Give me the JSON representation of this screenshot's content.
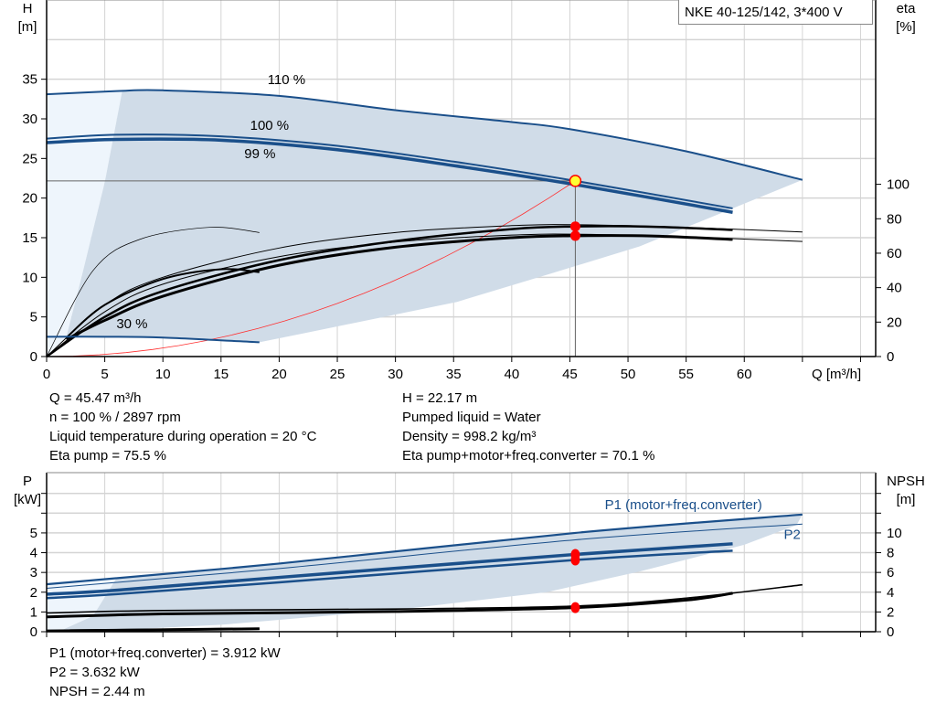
{
  "title_box": "NKE 40-125/142, 3*400 V",
  "colors": {
    "curve_blue": "#1a4f8a",
    "region": "#d0dce8",
    "region_light": "#eef5fc",
    "system_curve": "#ff3030",
    "duty_point": "#ffff33",
    "marker": "#ff0000"
  },
  "info_top": {
    "left": [
      "Q = 45.47 m³/h",
      "n = 100 % / 2897 rpm",
      "Liquid temperature during operation = 20 °C",
      "Eta pump = 75.5 %"
    ],
    "right": [
      "H = 22.17 m",
      "Pumped liquid = Water",
      "Density = 998.2 kg/m³",
      "Eta pump+motor+freq.converter = 70.1 %"
    ]
  },
  "info_bottom": [
    "P1 (motor+freq.converter) = 3.912 kW",
    "P2 = 3.632 kW",
    "NPSH = 2.44 m"
  ],
  "chart_data": [
    {
      "type": "line",
      "xlabel": "Q [m³/h]",
      "ylabel": "H",
      "ylabel_unit": "[m]",
      "y2label": "eta",
      "y2label_unit": "[%]",
      "xlim": [
        0,
        71.3
      ],
      "ylim": [
        0,
        45
      ],
      "y2lim": [
        0,
        207
      ],
      "xticks": [
        0,
        5,
        10,
        15,
        20,
        25,
        30,
        35,
        40,
        45,
        50,
        55,
        60
      ],
      "xticks_unlabeled": [
        65,
        70
      ],
      "yticks": [
        0,
        5,
        10,
        15,
        20,
        25,
        30,
        35
      ],
      "y2ticks": [
        0,
        20,
        40,
        60,
        80,
        100
      ],
      "grid": true,
      "curve_labels": [
        {
          "text": "110 %",
          "x": 19,
          "y": 34.4
        },
        {
          "text": "100 %",
          "x": 17.5,
          "y": 28.4
        },
        {
          "text": "99 %",
          "x": 17,
          "y": 27.6
        },
        {
          "text": "30 %",
          "x": 6,
          "y": 3.6
        }
      ],
      "head_series": [
        {
          "speed": "110 %",
          "points": [
            [
              0,
              33.1
            ],
            [
              6,
              33.5
            ],
            [
              10,
              33.6
            ],
            [
              20,
              32.9
            ],
            [
              30,
              31.1
            ],
            [
              40,
              29.6
            ],
            [
              45,
              28.7
            ],
            [
              55,
              25.9
            ],
            [
              65,
              22.3
            ]
          ]
        },
        {
          "speed": "100 %",
          "points": [
            [
              0,
              27.5
            ],
            [
              6,
              28
            ],
            [
              15,
              27.8
            ],
            [
              25,
              26.6
            ],
            [
              35,
              24.6
            ],
            [
              45.47,
              22.17
            ],
            [
              59,
              18.7
            ]
          ]
        },
        {
          "speed": "99 %",
          "points": [
            [
              0,
              27
            ],
            [
              6,
              27.4
            ],
            [
              15,
              27.3
            ],
            [
              25,
              26.1
            ],
            [
              35,
              24.1
            ],
            [
              45.47,
              21.7
            ],
            [
              59,
              18.2
            ]
          ]
        },
        {
          "speed": "30 %",
          "points": [
            [
              0,
              2.5
            ],
            [
              5,
              2.5
            ],
            [
              10,
              2.4
            ],
            [
              18.3,
              1.8
            ]
          ]
        }
      ],
      "eta_series": [
        {
          "name": "eta pump 110 %",
          "points": [
            [
              0,
              0
            ],
            [
              5,
              30
            ],
            [
              10,
              46
            ],
            [
              20,
              63
            ],
            [
              30,
              72
            ],
            [
              40,
              76
            ],
            [
              46,
              76.5
            ],
            [
              55,
              75
            ],
            [
              65,
              72.3
            ]
          ]
        },
        {
          "name": "eta total 110 %",
          "points": [
            [
              0,
              0
            ],
            [
              5,
              26
            ],
            [
              10,
              42
            ],
            [
              20,
              58
            ],
            [
              30,
              66.5
            ],
            [
              40,
              70.5
            ],
            [
              46,
              71
            ],
            [
              55,
              69.5
            ],
            [
              65,
              66.8
            ]
          ]
        },
        {
          "name": "eta pump 100 %",
          "points": [
            [
              0,
              0
            ],
            [
              5,
              23
            ],
            [
              10,
              38
            ],
            [
              20,
              56
            ],
            [
              30,
              67
            ],
            [
              40,
              74
            ],
            [
              45.47,
              75.5
            ],
            [
              52,
              75.4
            ],
            [
              59,
              73.5
            ]
          ]
        },
        {
          "name": "eta total 100 %",
          "points": [
            [
              1.7,
              10
            ],
            [
              5,
              21
            ],
            [
              10,
              35
            ],
            [
              20,
              53
            ],
            [
              30,
              63.5
            ],
            [
              40,
              69
            ],
            [
              45.47,
              70.1
            ],
            [
              52,
              70
            ],
            [
              59,
              68
            ]
          ]
        },
        {
          "name": "eta pump 30 %",
          "points": [
            [
              0,
              0
            ],
            [
              4,
              50
            ],
            [
              8,
              68
            ],
            [
              14,
              75
            ],
            [
              18.3,
              72
            ]
          ]
        },
        {
          "name": "eta total 30 %",
          "points": [
            [
              1.7,
              11
            ],
            [
              5,
              30
            ],
            [
              10,
              45
            ],
            [
              15,
              50.7
            ],
            [
              18.3,
              49
            ]
          ]
        }
      ],
      "system_curve": {
        "q_end": 45.47,
        "h_end": 22.17
      },
      "duty_point": {
        "Q": 45.47,
        "H": 22.17,
        "eta_pump": 75.5,
        "eta_total": 70.1
      },
      "region_upper": [
        [
          6.5,
          33.5
        ],
        [
          10,
          33.6
        ],
        [
          20,
          32.9
        ],
        [
          30,
          31.1
        ],
        [
          40,
          29.6
        ],
        [
          45,
          28.7
        ],
        [
          55,
          25.9
        ],
        [
          65,
          22.3
        ]
      ],
      "region_lower": [
        [
          65,
          22.3
        ],
        [
          51,
          13.9
        ],
        [
          43.2,
          10.4
        ],
        [
          35.3,
          6.9
        ],
        [
          22,
          2.9
        ],
        [
          18.3,
          1.8
        ],
        [
          10,
          2.4
        ],
        [
          1.7,
          2.5
        ],
        [
          3,
          10
        ],
        [
          5,
          22
        ],
        [
          6.5,
          33.5
        ]
      ],
      "region_light": [
        [
          0,
          0
        ],
        [
          0,
          33.1
        ],
        [
          6.5,
          33.5
        ],
        [
          5,
          22
        ],
        [
          3,
          10
        ],
        [
          1.7,
          2.5
        ]
      ]
    },
    {
      "type": "line",
      "ylabel": "P",
      "ylabel_unit": "[kW]",
      "y2label": "NPSH",
      "y2label_unit": "[m]",
      "xlim": [
        0,
        71.3
      ],
      "ylim": [
        0,
        8.05
      ],
      "y2lim": [
        0,
        16.1
      ],
      "yticks": [
        0,
        1,
        2,
        3,
        4,
        5
      ],
      "yticks_unlabeled": [
        6,
        7
      ],
      "y2ticks": [
        0,
        2,
        4,
        6,
        8,
        10
      ],
      "y2ticks_unlabeled": [
        12,
        14
      ],
      "grid": true,
      "series_labels": [
        {
          "text": "P1 (motor+freq.converter)",
          "x": 48,
          "y": 6.2
        },
        {
          "text": "P2",
          "x": 63.4,
          "y": 4.7
        }
      ],
      "power_series": [
        {
          "name": "P1 110 %",
          "points": [
            [
              0,
              2.4
            ],
            [
              20,
              3.45
            ],
            [
              45.47,
              5.0
            ],
            [
              65,
              5.93
            ]
          ],
          "w": 2.2
        },
        {
          "name": "P2 110 %",
          "points": [
            [
              0,
              2.2
            ],
            [
              20,
              3.2
            ],
            [
              45.47,
              4.65
            ],
            [
              65,
              5.45
            ]
          ],
          "w": 1
        },
        {
          "name": "P1 100 %",
          "points": [
            [
              0,
              1.9
            ],
            [
              6,
              2.1
            ],
            [
              20,
              2.75
            ],
            [
              45.47,
              3.912
            ],
            [
              59,
              4.45
            ]
          ],
          "w": 3.5
        },
        {
          "name": "P2 100 %",
          "points": [
            [
              0,
              1.7
            ],
            [
              6,
              1.9
            ],
            [
              20,
              2.5
            ],
            [
              45.47,
              3.632
            ],
            [
              59,
              4.1
            ]
          ],
          "w": 2.5
        },
        {
          "name": "P 30 %",
          "points": [
            [
              0,
              0.05
            ],
            [
              18.3,
              0.15
            ]
          ],
          "w": 2.5
        }
      ],
      "npsh_series": [
        {
          "name": "NPSH 100 %",
          "points": [
            [
              0,
              1.5
            ],
            [
              10,
              1.8
            ],
            [
              30,
              2.05
            ],
            [
              45.47,
              2.44
            ],
            [
              55,
              3.2
            ],
            [
              59,
              3.9
            ]
          ],
          "w": 3
        },
        {
          "name": "NPSH 110 %",
          "points": [
            [
              0,
              1.9
            ],
            [
              10,
              2.15
            ],
            [
              30,
              2.3
            ],
            [
              45.47,
              2.6
            ],
            [
              55,
              3.4
            ],
            [
              65,
              4.75
            ]
          ],
          "w": 1.6
        },
        {
          "name": "NPSH 30 %",
          "points": [
            [
              2,
              0.1
            ],
            [
              18.3,
              0.3
            ]
          ],
          "w": 3
        }
      ],
      "duty_point": {
        "P1": 3.912,
        "P2": 3.632,
        "NPSH": 2.44
      },
      "region_upper": [
        [
          6,
          2.7
        ],
        [
          20,
          3.45
        ],
        [
          45.47,
          5.0
        ],
        [
          65,
          5.93
        ]
      ],
      "region_lower": [
        [
          65,
          5.93
        ],
        [
          64.5,
          5.4
        ],
        [
          60,
          4.4
        ],
        [
          51,
          3.05
        ],
        [
          43,
          2.0
        ],
        [
          30,
          1.1
        ],
        [
          15,
          0.35
        ],
        [
          5,
          0.05
        ],
        [
          1,
          0.0
        ],
        [
          4,
          0.8
        ],
        [
          6,
          2.7
        ]
      ],
      "region_light": [
        [
          0,
          0
        ],
        [
          0,
          2.5
        ],
        [
          6,
          2.7
        ],
        [
          4,
          0.8
        ],
        [
          1,
          0
        ]
      ]
    }
  ]
}
